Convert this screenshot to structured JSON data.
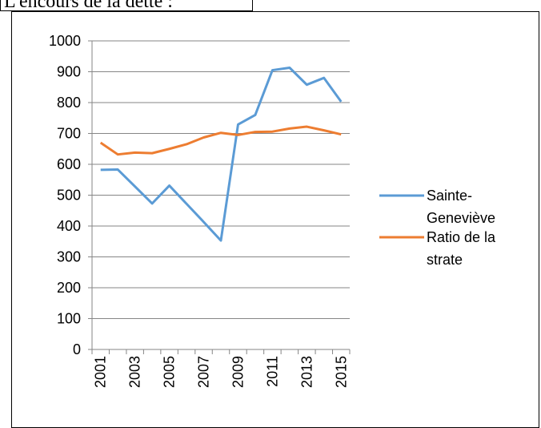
{
  "heading": "L'encours de la dette :",
  "chart_data": {
    "type": "line",
    "categories": [
      "2001",
      null,
      "2003",
      null,
      "2005",
      null,
      "2007",
      null,
      "2009",
      null,
      "2011",
      null,
      "2013",
      null,
      "2015"
    ],
    "series": [
      {
        "name": "Sainte-Geneviève",
        "color": "#5b9bd5",
        "values": [
          582,
          583,
          528,
          473,
          531,
          472,
          413,
          353,
          729,
          760,
          905,
          913,
          858,
          880,
          803
        ]
      },
      {
        "name": "Ratio de la strate",
        "color": "#ed7d31",
        "values": [
          670,
          632,
          638,
          636,
          650,
          665,
          687,
          702,
          695,
          705,
          706,
          716,
          722,
          710,
          697
        ]
      }
    ],
    "ylim": [
      0,
      1000
    ],
    "yticks": [
      0,
      100,
      200,
      300,
      400,
      500,
      600,
      700,
      800,
      900,
      1000
    ],
    "grid": true,
    "legend": "right"
  }
}
